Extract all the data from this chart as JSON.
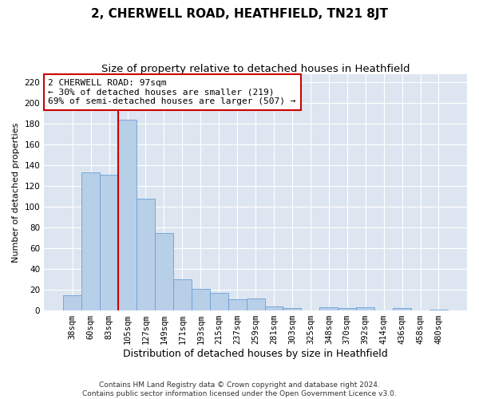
{
  "title": "2, CHERWELL ROAD, HEATHFIELD, TN21 8JT",
  "subtitle": "Size of property relative to detached houses in Heathfield",
  "xlabel": "Distribution of detached houses by size in Heathfield",
  "ylabel": "Number of detached properties",
  "categories": [
    "38sqm",
    "60sqm",
    "83sqm",
    "105sqm",
    "127sqm",
    "149sqm",
    "171sqm",
    "193sqm",
    "215sqm",
    "237sqm",
    "259sqm",
    "281sqm",
    "303sqm",
    "325sqm",
    "348sqm",
    "370sqm",
    "392sqm",
    "414sqm",
    "436sqm",
    "458sqm",
    "480sqm"
  ],
  "values": [
    15,
    133,
    131,
    184,
    108,
    75,
    30,
    21,
    17,
    11,
    12,
    4,
    2,
    0,
    3,
    2,
    3,
    0,
    2,
    0,
    1
  ],
  "bar_color": "#b8cfe8",
  "bar_edge_color": "#6a9fd8",
  "background_color": "#dde6f0",
  "vline_color": "#cc0000",
  "vline_x": 2.5,
  "annotation_text": "2 CHERWELL ROAD: 97sqm\n← 30% of detached houses are smaller (219)\n69% of semi-detached houses are larger (507) →",
  "annotation_box_color": "#ffffff",
  "annotation_box_edge": "#cc0000",
  "ylim": [
    0,
    228
  ],
  "yticks": [
    0,
    20,
    40,
    60,
    80,
    100,
    120,
    140,
    160,
    180,
    200,
    220
  ],
  "footer": "Contains HM Land Registry data © Crown copyright and database right 2024.\nContains public sector information licensed under the Open Government Licence v3.0.",
  "title_fontsize": 11,
  "subtitle_fontsize": 9.5,
  "xlabel_fontsize": 9,
  "ylabel_fontsize": 8,
  "tick_fontsize": 7.5,
  "annotation_fontsize": 8,
  "footer_fontsize": 6.5
}
